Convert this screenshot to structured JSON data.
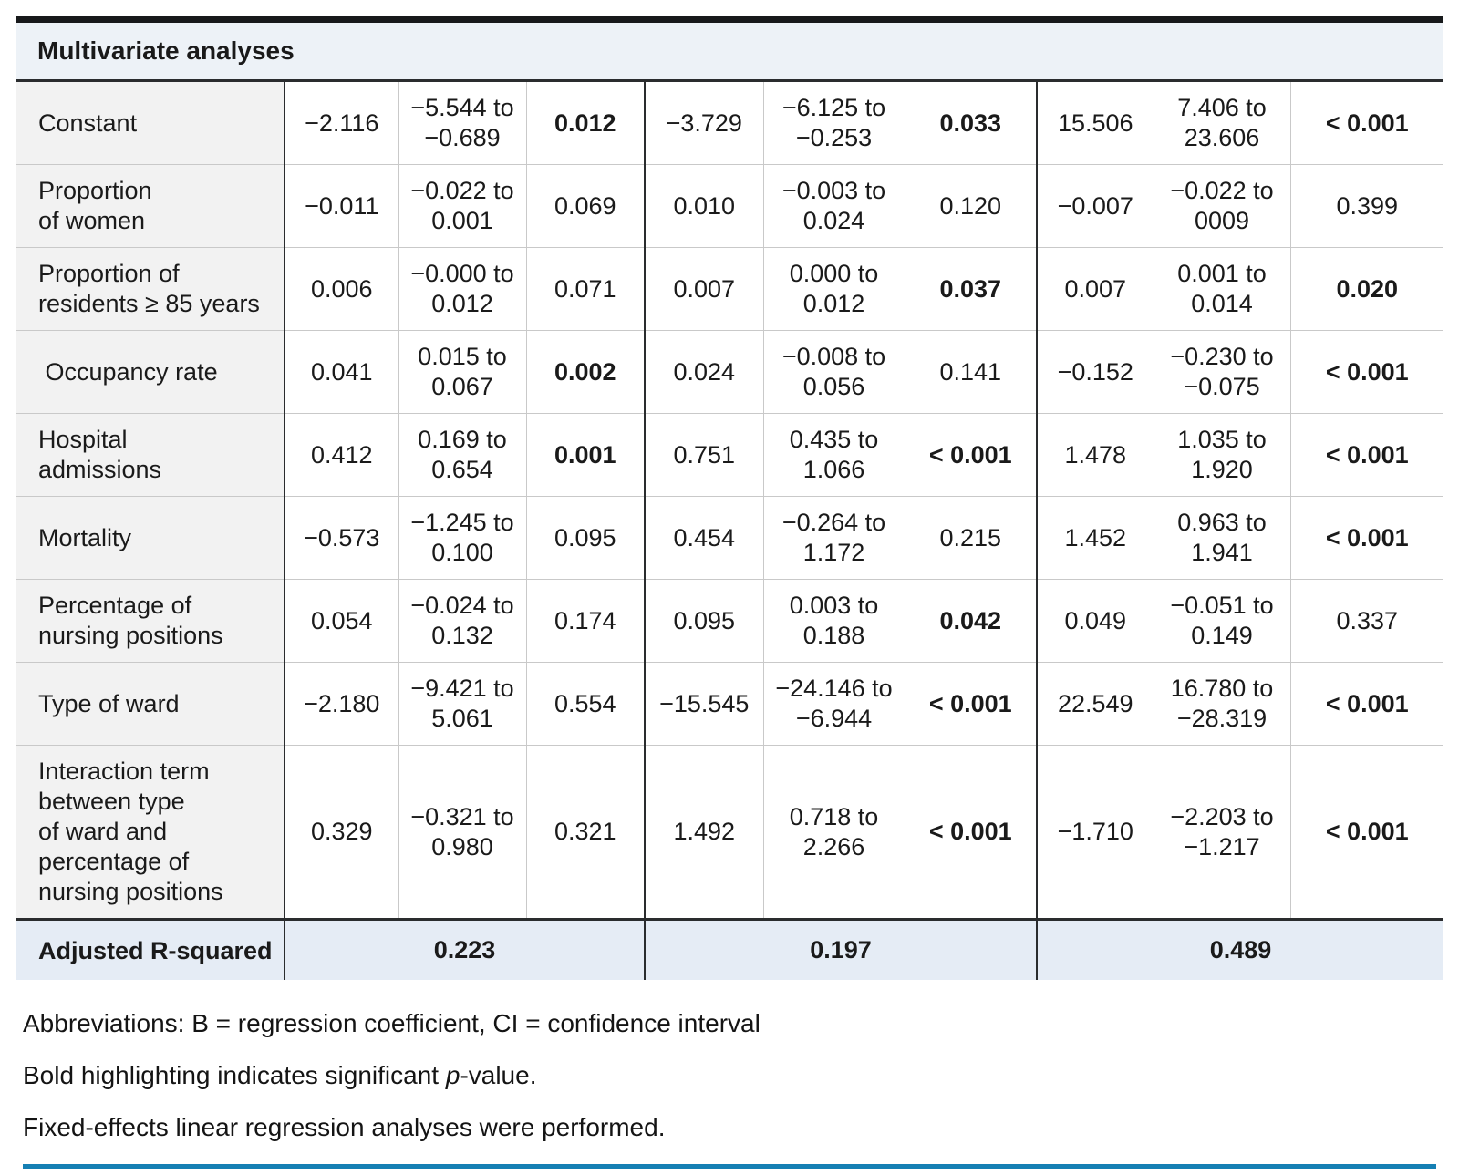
{
  "table": {
    "title": "Multivariate analyses",
    "rows": [
      {
        "label": "Constant",
        "cells": [
          {
            "v": "−2.116"
          },
          {
            "v": "−5.544 to\n−0.689"
          },
          {
            "v": "0.012",
            "b": true
          },
          {
            "v": "−3.729"
          },
          {
            "v": "−6.125 to\n−0.253"
          },
          {
            "v": "0.033",
            "b": true
          },
          {
            "v": "15.506"
          },
          {
            "v": "7.406 to\n23.606"
          },
          {
            "v": "< 0.001",
            "b": true
          }
        ]
      },
      {
        "label": "Proportion\nof women",
        "cells": [
          {
            "v": "−0.011"
          },
          {
            "v": "−0.022 to\n0.001"
          },
          {
            "v": "0.069"
          },
          {
            "v": "0.010"
          },
          {
            "v": "−0.003 to\n0.024"
          },
          {
            "v": "0.120"
          },
          {
            "v": "−0.007"
          },
          {
            "v": "−0.022 to\n0009"
          },
          {
            "v": "0.399"
          }
        ]
      },
      {
        "label": "Proportion of\nresidents ≥ 85 years",
        "cells": [
          {
            "v": "0.006"
          },
          {
            "v": "−0.000 to\n0.012"
          },
          {
            "v": "0.071"
          },
          {
            "v": "0.007"
          },
          {
            "v": "0.000 to\n0.012"
          },
          {
            "v": "0.037",
            "b": true
          },
          {
            "v": "0.007"
          },
          {
            "v": "0.001 to\n0.014"
          },
          {
            "v": "0.020",
            "b": true
          }
        ]
      },
      {
        "label": " Occupancy rate",
        "cells": [
          {
            "v": "0.041"
          },
          {
            "v": "0.015 to\n0.067"
          },
          {
            "v": "0.002",
            "b": true
          },
          {
            "v": "0.024"
          },
          {
            "v": "−0.008 to\n0.056"
          },
          {
            "v": "0.141"
          },
          {
            "v": "−0.152"
          },
          {
            "v": "−0.230 to\n−0.075"
          },
          {
            "v": "< 0.001",
            "b": true
          }
        ]
      },
      {
        "label": "Hospital\nadmissions",
        "cells": [
          {
            "v": "0.412"
          },
          {
            "v": "0.169 to\n0.654"
          },
          {
            "v": "0.001",
            "b": true
          },
          {
            "v": "0.751"
          },
          {
            "v": "0.435 to\n1.066"
          },
          {
            "v": "< 0.001",
            "b": true
          },
          {
            "v": "1.478"
          },
          {
            "v": "1.035 to\n1.920"
          },
          {
            "v": "< 0.001",
            "b": true
          }
        ]
      },
      {
        "label": "Mortality",
        "cells": [
          {
            "v": "−0.573"
          },
          {
            "v": "−1.245 to\n0.100"
          },
          {
            "v": "0.095"
          },
          {
            "v": "0.454"
          },
          {
            "v": "−0.264 to\n1.172"
          },
          {
            "v": "0.215"
          },
          {
            "v": "1.452"
          },
          {
            "v": "0.963 to\n1.941"
          },
          {
            "v": "< 0.001",
            "b": true
          }
        ]
      },
      {
        "label": "Percentage of\nnursing positions",
        "cells": [
          {
            "v": "0.054"
          },
          {
            "v": "−0.024 to\n0.132"
          },
          {
            "v": "0.174"
          },
          {
            "v": "0.095"
          },
          {
            "v": "0.003 to\n0.188"
          },
          {
            "v": "0.042",
            "b": true
          },
          {
            "v": "0.049"
          },
          {
            "v": "−0.051 to\n0.149"
          },
          {
            "v": "0.337"
          }
        ]
      },
      {
        "label": "Type of ward",
        "cells": [
          {
            "v": "−2.180"
          },
          {
            "v": "−9.421 to\n5.061"
          },
          {
            "v": "0.554"
          },
          {
            "v": "−15.545"
          },
          {
            "v": "−24.146 to\n−6.944"
          },
          {
            "v": "< 0.001",
            "b": true
          },
          {
            "v": "22.549"
          },
          {
            "v": "16.780 to\n−28.319"
          },
          {
            "v": "< 0.001",
            "b": true
          }
        ]
      },
      {
        "label": "Interaction term\nbetween type\nof ward and\npercentage of\nnursing positions",
        "cells": [
          {
            "v": "0.329"
          },
          {
            "v": "−0.321 to\n0.980"
          },
          {
            "v": "0.321"
          },
          {
            "v": "1.492"
          },
          {
            "v": "0.718 to\n2.266"
          },
          {
            "v": "< 0.001",
            "b": true
          },
          {
            "v": "−1.710"
          },
          {
            "v": "−2.203 to\n−1.217"
          },
          {
            "v": "< 0.001",
            "b": true
          }
        ]
      }
    ],
    "summary": {
      "label": "Adjusted R-squared",
      "values": [
        "0.223",
        "0.197",
        "0.489"
      ]
    }
  },
  "notes": {
    "abbreviations": "Abbreviations: B = regression coefficient, CI = confidence interval",
    "bold_note": {
      "prefix": "Bold highlighting indicates significant ",
      "italic": "p",
      "suffix": "-value."
    },
    "method": "Fixed-effects linear regression analyses were performed."
  },
  "colors": {
    "top_rule": "#17191b",
    "bottom_rule": "#1580b4",
    "header_bg": "#edf2f7",
    "label_bg": "#f2f2f2",
    "summary_bg": "#e5ecf5"
  }
}
